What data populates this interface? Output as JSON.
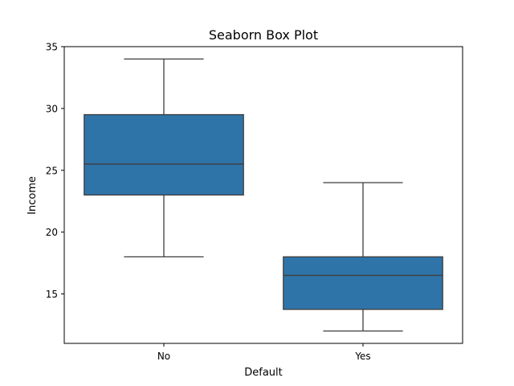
{
  "chart_data": {
    "type": "box",
    "title": "Seaborn Box Plot",
    "xlabel": "Default",
    "ylabel": "Income",
    "ylim": [
      11,
      35
    ],
    "yticks": [
      15,
      20,
      25,
      30,
      35
    ],
    "grid": false,
    "legend": null,
    "box_color": "#2f74a8",
    "categories": [
      "No",
      "Yes"
    ],
    "boxes": [
      {
        "category": "No",
        "whisker_low": 18,
        "q1": 23,
        "median": 25.5,
        "q3": 29.5,
        "whisker_high": 34
      },
      {
        "category": "Yes",
        "whisker_low": 12,
        "q1": 13.75,
        "median": 16.5,
        "q3": 18,
        "whisker_high": 24
      }
    ]
  }
}
